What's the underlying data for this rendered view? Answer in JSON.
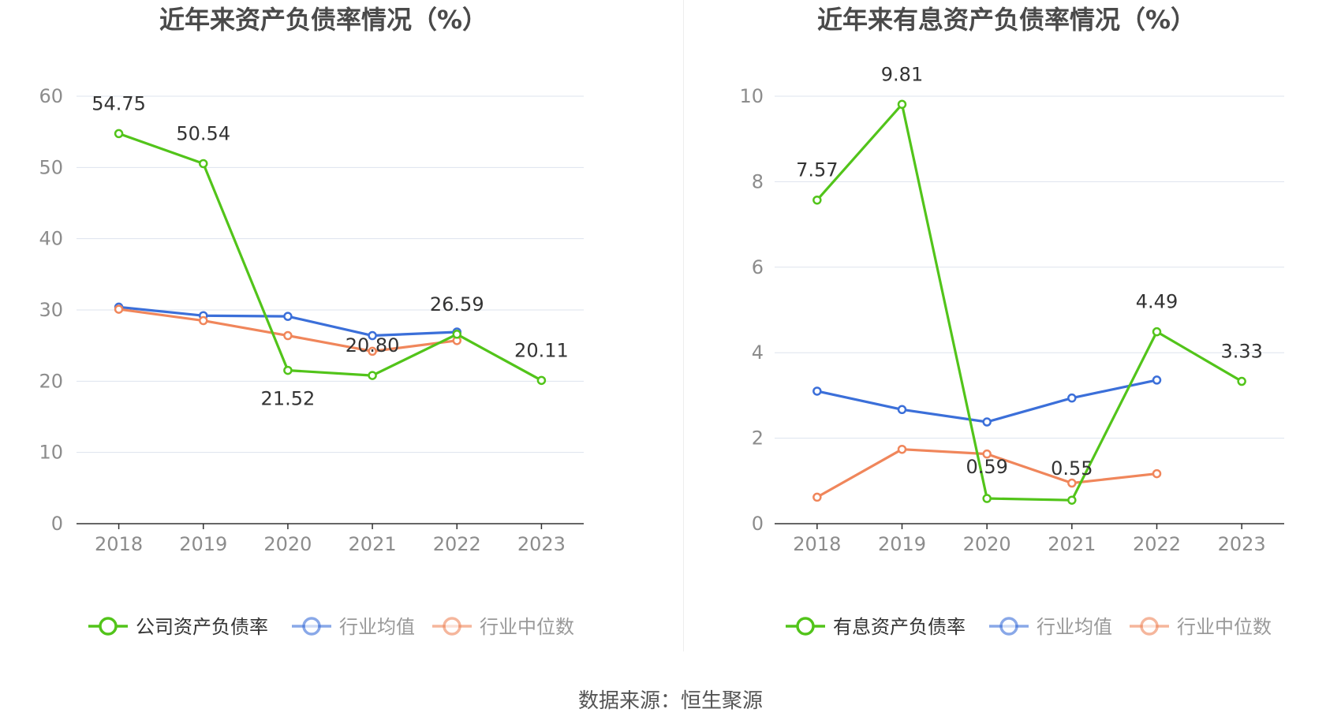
{
  "source": {
    "label": "数据来源：恒生聚源"
  },
  "colors": {
    "company": "#52c41a",
    "industry_avg": "#3b6fd9",
    "industry_median": "#f0865b",
    "grid": "#dde3ee",
    "axis": "#333333",
    "divider": "#eeeeee",
    "tick_text": "#8c8c8c",
    "legend_text": "#333333",
    "legend_text_muted": "#999999"
  },
  "chart_data": [
    {
      "type": "line",
      "title": "近年来资产负债率情况（%）",
      "x": [
        "2018",
        "2019",
        "2020",
        "2021",
        "2022",
        "2023"
      ],
      "ylim": [
        0,
        60
      ],
      "yticks": [
        0,
        10,
        20,
        30,
        40,
        50,
        60
      ],
      "grid": true,
      "legend_position": "bottom",
      "series": [
        {
          "name": "公司资产负债率",
          "key": "company",
          "values": [
            54.75,
            50.54,
            21.52,
            20.8,
            26.59,
            20.11
          ],
          "labels": [
            "54.75",
            "50.54",
            "21.52",
            "20.80",
            "26.59",
            "20.11"
          ]
        },
        {
          "name": "行业均值",
          "key": "industry_avg",
          "values": [
            30.4,
            29.2,
            29.1,
            26.4,
            26.9,
            null
          ]
        },
        {
          "name": "行业中位数",
          "key": "industry_median",
          "values": [
            30.1,
            28.5,
            26.4,
            24.2,
            25.7,
            null
          ]
        }
      ]
    },
    {
      "type": "line",
      "title": "近年来有息资产负债率情况（%）",
      "x": [
        "2018",
        "2019",
        "2020",
        "2021",
        "2022",
        "2023"
      ],
      "ylim": [
        0,
        10
      ],
      "yticks": [
        0,
        2,
        4,
        6,
        8,
        10
      ],
      "grid": true,
      "legend_position": "bottom",
      "series": [
        {
          "name": "有息资产负债率",
          "key": "company",
          "values": [
            7.57,
            9.81,
            0.59,
            0.55,
            4.49,
            3.33
          ],
          "labels": [
            "7.57",
            "9.81",
            "0.59",
            "0.55",
            "4.49",
            "3.33"
          ]
        },
        {
          "name": "行业均值",
          "key": "industry_avg",
          "values": [
            3.1,
            2.67,
            2.38,
            2.94,
            3.36,
            null
          ]
        },
        {
          "name": "行业中位数",
          "key": "industry_median",
          "values": [
            0.62,
            1.74,
            1.63,
            0.95,
            1.17,
            null
          ]
        }
      ]
    }
  ]
}
